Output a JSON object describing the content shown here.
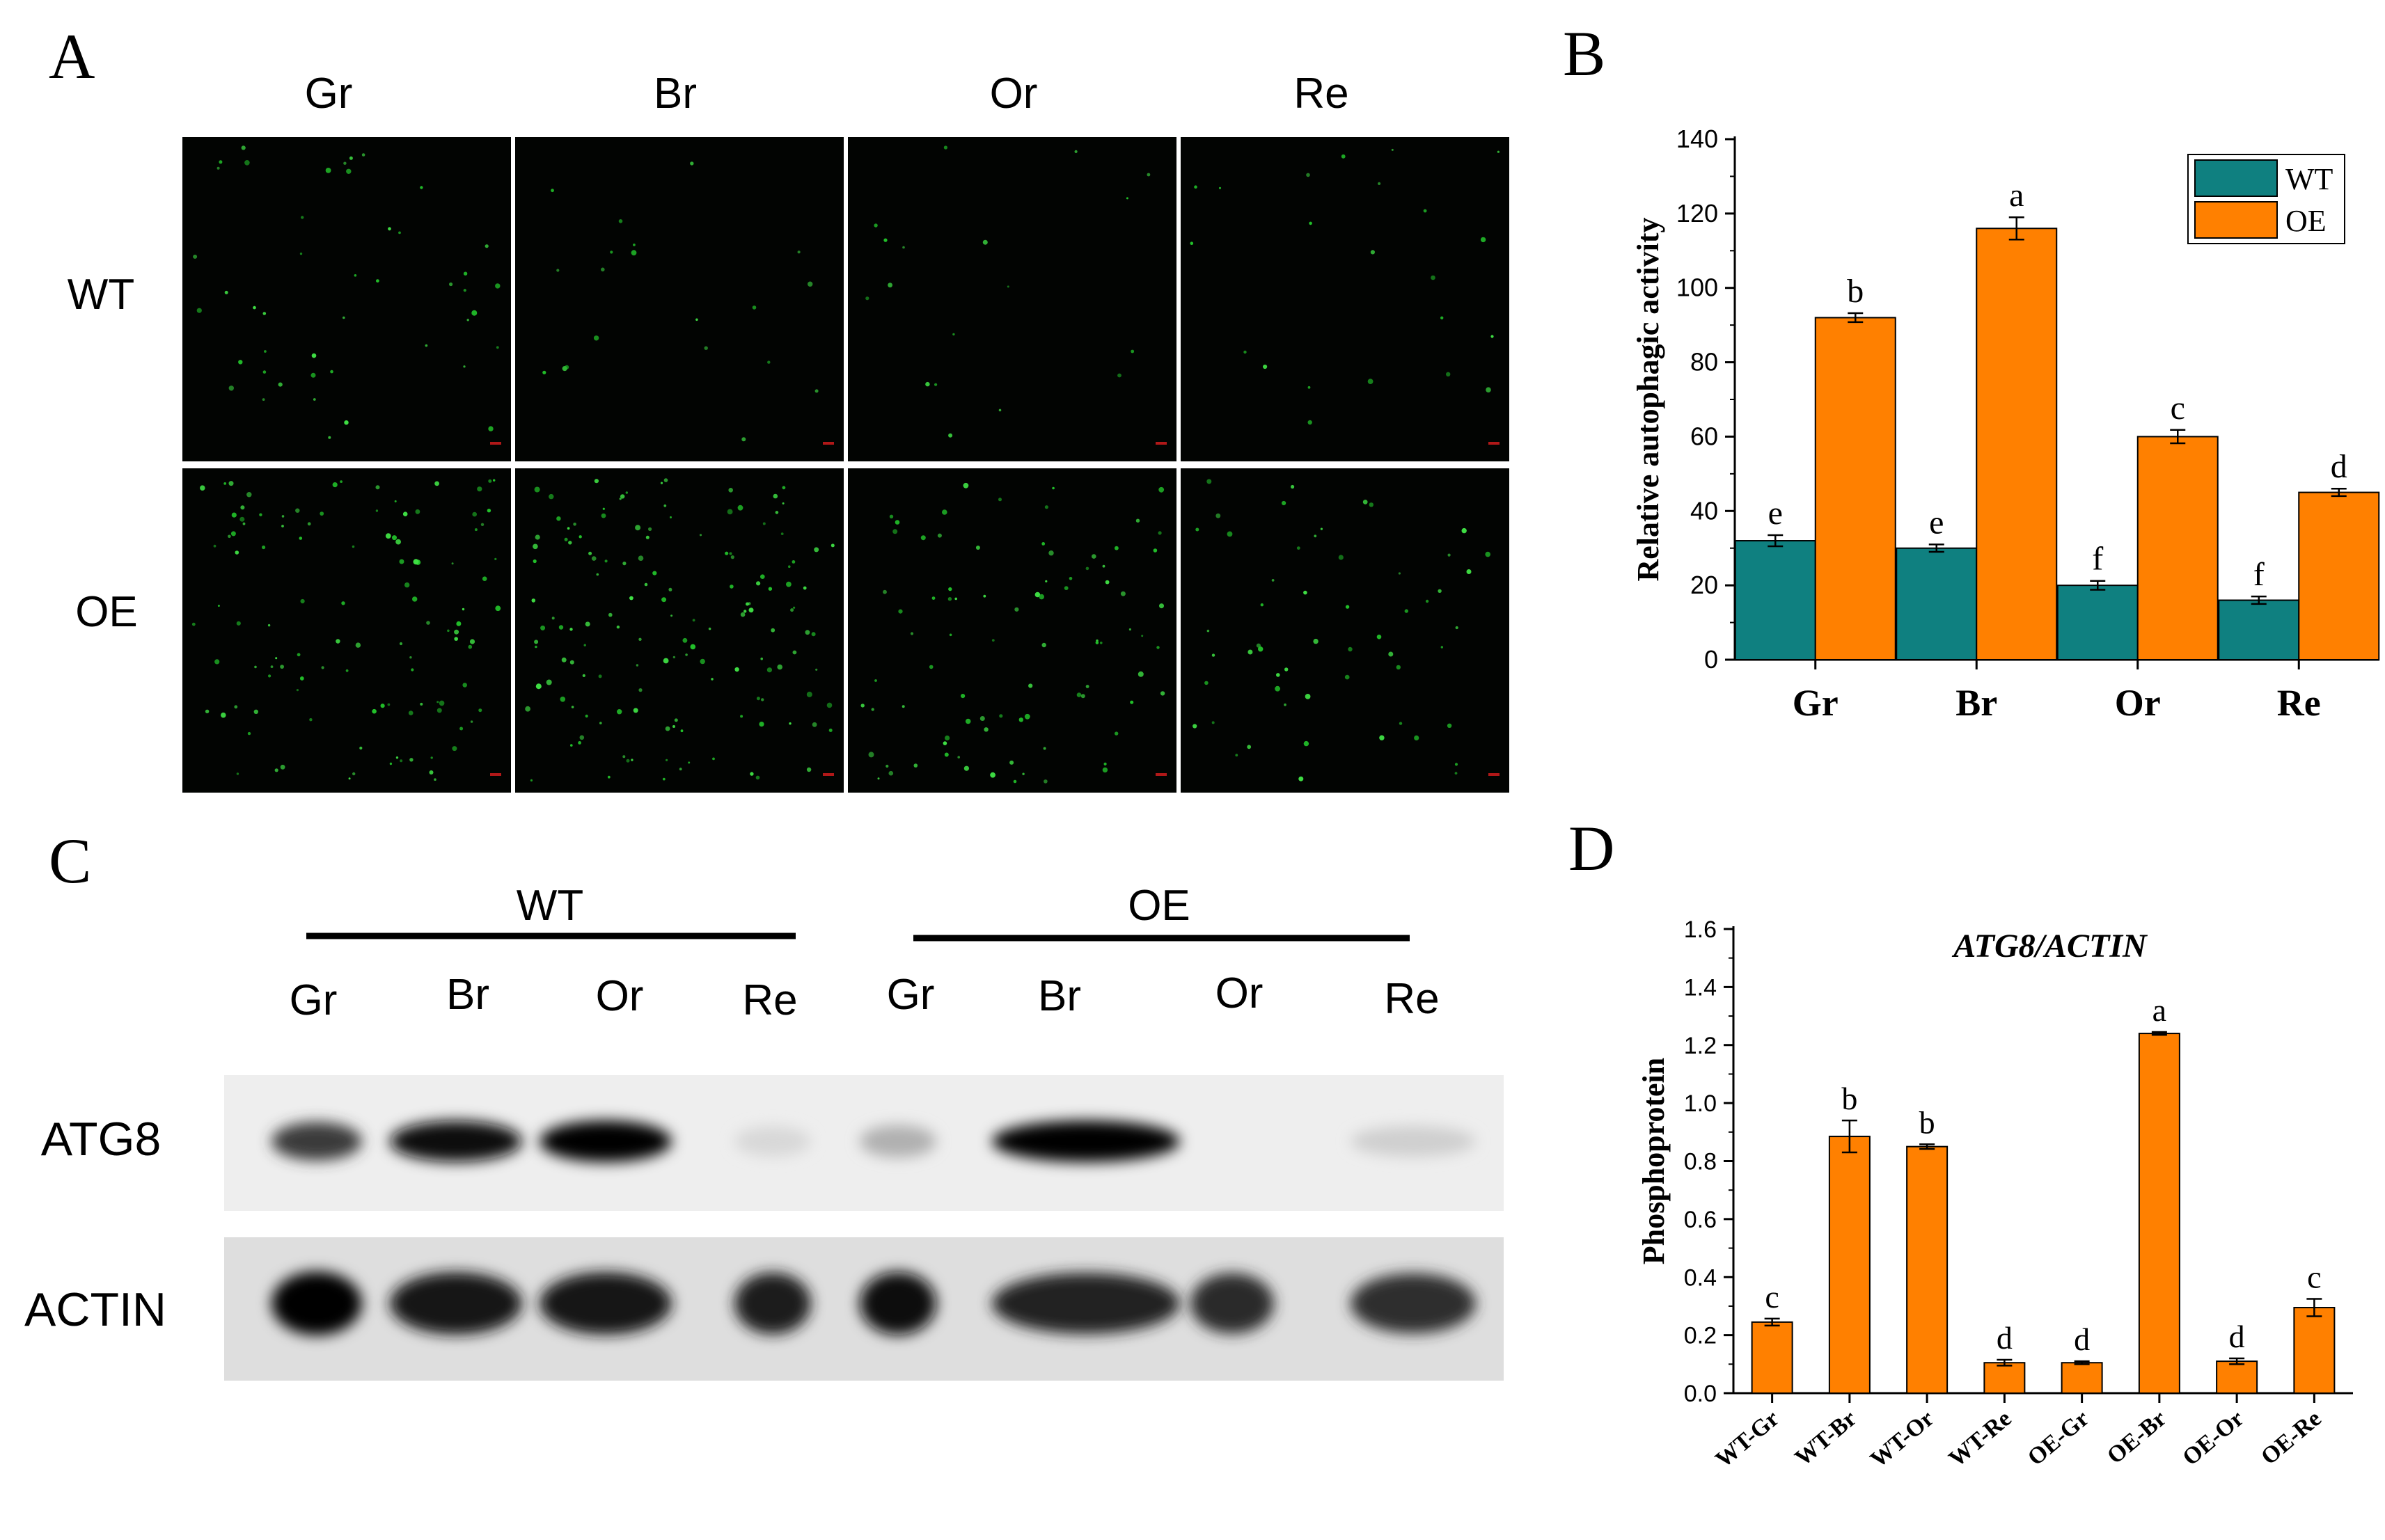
{
  "panels": {
    "A": {
      "letter": "A",
      "columns": [
        "Gr",
        "Br",
        "Or",
        "Re"
      ],
      "rows": [
        "WT",
        "OE"
      ]
    },
    "C": {
      "letter": "C",
      "groups": [
        "WT",
        "OE"
      ],
      "lanes": [
        "Gr",
        "Br",
        "Or",
        "Re",
        "Gr",
        "Br",
        "Or",
        "Re"
      ],
      "blots": [
        {
          "label": "ATG8",
          "intensity": [
            0.75,
            0.95,
            1.0,
            0.08,
            0.25,
            1.0,
            0.0,
            0.12
          ]
        },
        {
          "label": "ACTIN",
          "intensity": [
            1.0,
            0.92,
            0.92,
            0.88,
            0.95,
            0.85,
            0.82,
            0.8
          ]
        }
      ]
    }
  },
  "chart_data": [
    {
      "panel": "B",
      "type": "bar",
      "title": "",
      "xlabel": "",
      "ylabel": "Relative autophagic activity",
      "ylim": [
        0,
        140
      ],
      "yticks": [
        0,
        20,
        40,
        60,
        80,
        100,
        120,
        140
      ],
      "categories": [
        "Gr",
        "Br",
        "Or",
        "Re"
      ],
      "series": [
        {
          "name": "WT",
          "color": "#0f8080",
          "values": [
            32,
            30,
            20,
            16
          ],
          "errors": [
            1.5,
            1,
            1.2,
            1
          ],
          "letters": [
            "e",
            "e",
            "f",
            "f"
          ]
        },
        {
          "name": "OE",
          "color": "#ff8000",
          "values": [
            92,
            116,
            60,
            45
          ],
          "errors": [
            1.2,
            3,
            1.8,
            1
          ],
          "letters": [
            "b",
            "a",
            "c",
            "d"
          ]
        }
      ],
      "legend": "top-right",
      "grid": false
    },
    {
      "panel": "D",
      "type": "bar",
      "title": "ATG8/ACTIN",
      "xlabel": "",
      "ylabel": "Phosphoprotein",
      "ylim": [
        0,
        1.6
      ],
      "yticks": [
        "0.0",
        "0.2",
        "0.4",
        "0.6",
        "0.8",
        "1.0",
        "1.2",
        "1.4",
        "1.6"
      ],
      "categories": [
        "WT-Gr",
        "WT-Br",
        "WT-Or",
        "WT-Re",
        "OE-Gr",
        "OE-Br",
        "OE-Or",
        "OE-Re"
      ],
      "series": [
        {
          "color": "#ff8000",
          "values": [
            0.245,
            0.885,
            0.85,
            0.105,
            0.105,
            1.24,
            0.11,
            0.295
          ],
          "errors": [
            0.012,
            0.055,
            0.008,
            0.01,
            0.005,
            0.005,
            0.01,
            0.03
          ],
          "letters": [
            "c",
            "b",
            "b",
            "d",
            "d",
            "a",
            "d",
            "c"
          ]
        }
      ],
      "legend": "none",
      "grid": false
    }
  ]
}
